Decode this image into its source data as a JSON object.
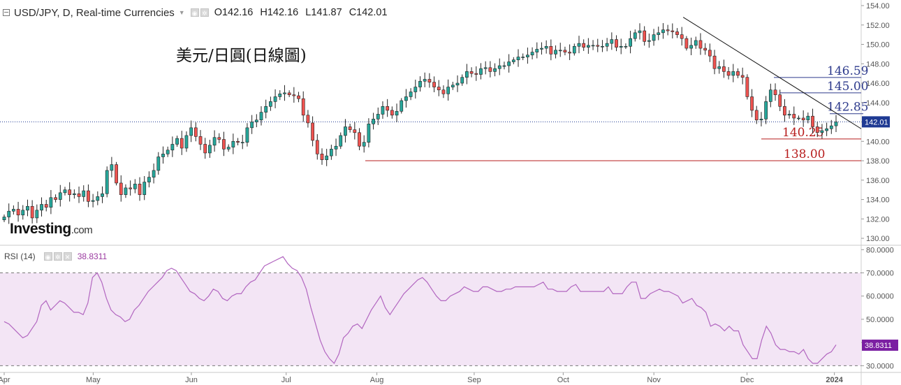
{
  "header": {
    "symbol_title": "USD/JPY, D, Real-time Currencies",
    "ohlc": {
      "open": "O142.16",
      "high": "H142.16",
      "low": "L141.87",
      "close": "C142.01"
    }
  },
  "annotation_title": "美元/日圓(日線圖)",
  "watermark": {
    "brand": "Investing",
    "suffix": ".com"
  },
  "icons": [
    "window-icon",
    "caret-down-icon",
    "eye-icon",
    "gear-icon",
    "close-icon"
  ],
  "colors": {
    "up_candle": "#26a69a",
    "down_candle": "#ef5350",
    "resistance": "#2d3a8c",
    "support": "#b71c1c",
    "trendline": "#111111",
    "rsi_line": "#b266c0",
    "rsi_band": "#f3e5f5",
    "last_price_label": "#1f3a93",
    "rsi_value_label": "#7b1fa2"
  },
  "chart_data": [
    {
      "type": "candlestick",
      "title": "USD/JPY, D, Real-time Currencies",
      "ylim": [
        129.5,
        154.0
      ],
      "y_ticks": [
        130.0,
        132.0,
        134.0,
        136.0,
        138.0,
        140.0,
        142.0,
        144.0,
        146.0,
        148.0,
        150.0,
        152.0,
        154.0
      ],
      "x_ticks": [
        "Apr",
        "May",
        "Jun",
        "Jul",
        "Aug",
        "Sep",
        "Oct",
        "Nov",
        "Dec",
        "2024"
      ],
      "last_price": 142.01,
      "last_price_label": "142.01",
      "close_series": [
        132.2,
        132.8,
        133.0,
        132.4,
        132.9,
        133.3,
        132.1,
        132.9,
        133.5,
        133.2,
        134.2,
        134.0,
        134.7,
        135.0,
        134.5,
        134.6,
        134.3,
        134.9,
        133.8,
        133.9,
        134.3,
        134.6,
        137.0,
        137.6,
        135.7,
        134.5,
        135.2,
        135.1,
        135.6,
        134.5,
        135.8,
        136.3,
        137.0,
        138.4,
        138.7,
        139.1,
        139.7,
        140.3,
        139.3,
        140.6,
        141.4,
        140.5,
        139.7,
        138.8,
        139.6,
        140.4,
        140.2,
        139.2,
        139.4,
        140.0,
        139.9,
        139.9,
        141.4,
        142.0,
        142.2,
        143.0,
        143.6,
        144.1,
        144.6,
        144.9,
        145.0,
        144.8,
        144.7,
        144.4,
        142.7,
        141.9,
        140.1,
        138.7,
        138.1,
        138.5,
        139.2,
        139.5,
        140.6,
        141.5,
        141.2,
        140.9,
        139.5,
        139.9,
        141.8,
        142.3,
        142.8,
        143.6,
        143.2,
        142.7,
        143.1,
        144.2,
        144.6,
        145.1,
        145.6,
        146.2,
        146.4,
        146.1,
        145.6,
        145.3,
        144.9,
        145.6,
        145.8,
        146.0,
        146.6,
        147.2,
        147.0,
        146.9,
        147.5,
        147.6,
        147.2,
        147.5,
        147.8,
        147.8,
        148.2,
        148.4,
        148.7,
        148.7,
        148.9,
        149.2,
        149.5,
        149.6,
        149.8,
        149.0,
        149.4,
        149.4,
        149.2,
        149.1,
        149.8,
        150.1,
        149.7,
        149.9,
        149.9,
        149.8,
        149.8,
        150.1,
        150.5,
        149.7,
        149.8,
        149.8,
        150.6,
        151.2,
        151.4,
        150.3,
        150.4,
        151.0,
        151.2,
        151.5,
        151.4,
        151.3,
        151.0,
        150.6,
        149.6,
        149.9,
        150.4,
        149.6,
        149.4,
        148.8,
        147.5,
        147.7,
        147.2,
        146.8,
        147.2,
        146.8,
        146.6,
        144.6,
        143.2,
        142.2,
        142.3,
        144.1,
        145.3,
        144.8,
        143.6,
        142.7,
        142.8,
        142.4,
        142.4,
        142.2,
        142.6,
        141.5,
        140.9,
        141.1,
        141.3,
        141.6,
        142.0
      ],
      "levels": [
        {
          "value": 146.59,
          "label": "146.59",
          "kind": "resistance"
        },
        {
          "value": 145.0,
          "label": "145.00",
          "kind": "resistance"
        },
        {
          "value": 142.85,
          "label": "142.85",
          "kind": "resistance"
        },
        {
          "value": 140.25,
          "label": "140.25",
          "kind": "support"
        },
        {
          "value": 138.0,
          "label": "138.00",
          "kind": "support"
        }
      ],
      "trendline": {
        "start": {
          "month": "Nov",
          "value": 152.8
        },
        "end": {
          "month": "2024",
          "value": 141.3
        }
      }
    },
    {
      "type": "line",
      "title": "RSI (14)",
      "ylim": [
        28.0,
        81.0
      ],
      "y_ticks": [
        30.0,
        40.0,
        50.0,
        60.0,
        70.0,
        80.0
      ],
      "bands": [
        30,
        70
      ],
      "last_value": 38.8311,
      "last_value_label": "38.8311",
      "values": [
        49,
        48,
        46,
        44,
        42,
        43,
        46,
        49,
        56,
        58,
        54,
        56,
        58,
        57,
        55,
        53,
        53,
        52,
        57,
        68,
        70,
        66,
        59,
        54,
        52,
        51,
        49,
        50,
        54,
        56,
        59,
        62,
        64,
        66,
        68,
        71,
        72,
        71,
        68,
        65,
        62,
        61,
        59,
        58,
        60,
        63,
        62,
        59,
        58,
        60,
        61,
        61,
        64,
        66,
        67,
        70,
        73,
        74,
        75,
        76,
        77,
        74,
        72,
        71,
        68,
        63,
        55,
        48,
        41,
        36,
        33,
        31,
        35,
        42,
        44,
        47,
        48,
        46,
        50,
        54,
        57,
        60,
        55,
        52,
        55,
        58,
        61,
        63,
        65,
        67,
        68,
        66,
        63,
        60,
        58,
        58,
        60,
        61,
        62,
        64,
        63,
        62,
        62,
        64,
        64,
        63,
        62,
        62,
        63,
        63,
        64,
        64,
        64,
        64,
        64,
        65,
        66,
        63,
        63,
        62,
        62,
        62,
        64,
        65,
        62,
        62,
        62,
        62,
        62,
        62,
        64,
        61,
        61,
        61,
        64,
        66,
        66,
        59,
        59,
        61,
        62,
        63,
        62,
        62,
        61,
        60,
        57,
        58,
        59,
        56,
        55,
        53,
        47,
        48,
        47,
        45,
        47,
        45,
        45,
        39,
        36,
        33,
        33,
        41,
        47,
        44,
        39,
        37,
        37,
        36,
        36,
        35,
        37,
        33,
        31,
        31,
        33,
        35,
        36,
        39
      ]
    }
  ]
}
